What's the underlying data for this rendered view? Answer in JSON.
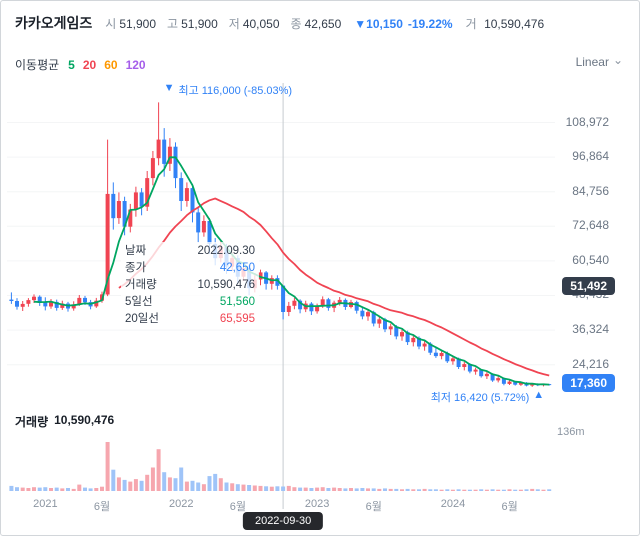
{
  "colors": {
    "up": "#f04452",
    "down": "#3182f6",
    "up_volume": "#f6a6ae",
    "down_volume": "#9fc4f8",
    "ma5": "#00a661",
    "ma20": "#f04452",
    "ma60": "#fe9800",
    "ma120": "#a55eea",
    "accent_blue": "#3182f6",
    "badge_dark": "#333d4b"
  },
  "header": {
    "title": "카카오게임즈",
    "fields": [
      {
        "label": "시",
        "value": "51,900"
      },
      {
        "label": "고",
        "value": "51,900"
      },
      {
        "label": "저",
        "value": "40,050"
      },
      {
        "label": "종",
        "value": "42,650"
      }
    ],
    "change": "▼10,150",
    "change_pct": "-19.22%",
    "volume_label": "거",
    "volume_value": "10,590,476"
  },
  "legend": {
    "label": "이동평균",
    "periods": [
      {
        "value": "5",
        "color": "#00a661"
      },
      {
        "value": "20",
        "color": "#f04452"
      },
      {
        "value": "60",
        "color": "#fe9800"
      },
      {
        "value": "120",
        "color": "#a55eea"
      }
    ]
  },
  "scale": {
    "label": "Linear"
  },
  "annotations": {
    "high_marker": "▼",
    "high_text": "최고 116,000 (-85.03%)",
    "low_text": "최저 16,420 (5.72%)",
    "low_marker": "▲"
  },
  "tooltip": {
    "rows": [
      {
        "label": "날짜",
        "value": "2022.09.30",
        "color": "#333d4b"
      },
      {
        "label": "종가",
        "value": "42,650",
        "color": "#3182f6"
      },
      {
        "label": "거래량",
        "value": "10,590,476",
        "color": "#333d4b"
      },
      {
        "label": "5일선",
        "value": "51,560",
        "color": "#00a661"
      },
      {
        "label": "20일선",
        "value": "65,595",
        "color": "#f04452"
      }
    ]
  },
  "y_axis": {
    "labels": [
      "108,972",
      "96,864",
      "84,756",
      "72,648",
      "60,540",
      "48,432",
      "36,324",
      "24,216"
    ],
    "values": [
      108972,
      96864,
      84756,
      72648,
      60540,
      48432,
      36324,
      24216
    ]
  },
  "badges": {
    "crosshair_label": "51,492",
    "crosshair_value": 51492,
    "last_label": "17,360",
    "last_value": 17360
  },
  "volume_pane": {
    "label": "거래량",
    "value": "10,590,476",
    "axis_label": "136m",
    "axis_value": 136
  },
  "x_axis": {
    "labels": [
      "2021",
      "6월",
      "2022",
      "6월",
      "2023",
      "6월",
      "2024",
      "6월"
    ],
    "month_offsets": [
      0,
      5,
      12,
      17,
      24,
      29,
      36,
      41
    ]
  },
  "date_pill": "2022-09-30",
  "chart_data": {
    "type": "candlestick",
    "title": "카카오게임즈",
    "scale": "Linear",
    "crosshair_index": 48,
    "crosshair_date": "2022-09-30",
    "crosshair_ohlc": {
      "open": 51900,
      "high": 51900,
      "low": 40050,
      "close": 42650,
      "volume": 10590476
    },
    "high_point": {
      "index": 26,
      "price": 116000,
      "change_from_high_pct": -85.03
    },
    "low_point": {
      "index": 92,
      "price": 16420,
      "change_from_low_pct": 5.72
    },
    "last_close": 17360,
    "price_range": [
      15000,
      120000
    ],
    "volume_axis_max_m": 136,
    "candles": [
      [
        47000,
        49500,
        45500,
        46500
      ],
      [
        46500,
        47500,
        43500,
        44500
      ],
      [
        44500,
        46500,
        43000,
        45500
      ],
      [
        45500,
        47500,
        44500,
        46800
      ],
      [
        46800,
        48800,
        45800,
        48000
      ],
      [
        48000,
        48500,
        44800,
        45800
      ],
      [
        46000,
        47800,
        43200,
        44600
      ],
      [
        44600,
        47200,
        43800,
        46200
      ],
      [
        46200,
        47000,
        43100,
        44100
      ],
      [
        44100,
        46600,
        43400,
        45600
      ],
      [
        45600,
        46200,
        42800,
        43900
      ],
      [
        43900,
        46400,
        43100,
        45300
      ],
      [
        45300,
        48600,
        44800,
        47600
      ],
      [
        47600,
        48300,
        45100,
        46100
      ],
      [
        46100,
        46900,
        43600,
        44600
      ],
      [
        44600,
        47600,
        44100,
        46600
      ],
      [
        46600,
        49800,
        45900,
        48800
      ],
      [
        48800,
        103000,
        48200,
        84000
      ],
      [
        84000,
        88000,
        71500,
        75500
      ],
      [
        75500,
        84500,
        73500,
        81500
      ],
      [
        81500,
        83000,
        69500,
        72500
      ],
      [
        72500,
        80500,
        70500,
        78500
      ],
      [
        78500,
        86500,
        76000,
        84500
      ],
      [
        84500,
        86000,
        76500,
        79500
      ],
      [
        79500,
        92000,
        78000,
        89500
      ],
      [
        89500,
        99000,
        87000,
        96500
      ],
      [
        96500,
        116000,
        94000,
        103000
      ],
      [
        103000,
        107000,
        90000,
        94500
      ],
      [
        94500,
        103500,
        92000,
        100500
      ],
      [
        100500,
        102000,
        86000,
        89500
      ],
      [
        89500,
        91500,
        78000,
        81500
      ],
      [
        81500,
        88000,
        79500,
        86000
      ],
      [
        86000,
        87500,
        74000,
        77500
      ],
      [
        77500,
        79000,
        67000,
        70500
      ],
      [
        70500,
        76500,
        69000,
        74500
      ],
      [
        74500,
        75500,
        63000,
        66500
      ],
      [
        66500,
        68500,
        59000,
        61500
      ],
      [
        61500,
        67500,
        60000,
        65500
      ],
      [
        65500,
        66500,
        56000,
        58500
      ],
      [
        58500,
        63500,
        57000,
        61500
      ],
      [
        61500,
        62500,
        52500,
        55000
      ],
      [
        55000,
        59500,
        53500,
        58000
      ],
      [
        58000,
        59000,
        48500,
        51000
      ],
      [
        51000,
        55500,
        49500,
        54000
      ],
      [
        54000,
        57500,
        52000,
        56500
      ],
      [
        56500,
        57000,
        50500,
        52500
      ],
      [
        52500,
        55500,
        50500,
        54500
      ],
      [
        54500,
        55500,
        50500,
        51800
      ],
      [
        51900,
        51900,
        40050,
        42650
      ],
      [
        42650,
        46200,
        41200,
        44800
      ],
      [
        44800,
        47600,
        43600,
        46600
      ],
      [
        46600,
        47100,
        42200,
        43600
      ],
      [
        43600,
        46600,
        42600,
        45600
      ],
      [
        45600,
        46100,
        41600,
        42900
      ],
      [
        42900,
        45600,
        42100,
        44900
      ],
      [
        44900,
        48100,
        44100,
        47100
      ],
      [
        47100,
        47600,
        43100,
        44100
      ],
      [
        44100,
        46600,
        42600,
        45900
      ],
      [
        45900,
        47900,
        44900,
        46900
      ],
      [
        46900,
        47400,
        43400,
        44400
      ],
      [
        44400,
        46900,
        43900,
        46100
      ],
      [
        46100,
        46600,
        42100,
        43100
      ],
      [
        43100,
        44600,
        40100,
        41100
      ],
      [
        41100,
        43600,
        39600,
        42600
      ],
      [
        42600,
        43100,
        37600,
        38600
      ],
      [
        38600,
        41100,
        37100,
        40100
      ],
      [
        40100,
        40600,
        35600,
        36600
      ],
      [
        36600,
        38600,
        34600,
        37600
      ],
      [
        37600,
        38100,
        33100,
        34100
      ],
      [
        34100,
        36600,
        32600,
        35600
      ],
      [
        35600,
        36100,
        31100,
        32100
      ],
      [
        32100,
        34600,
        30600,
        33600
      ],
      [
        33600,
        34100,
        29600,
        30600
      ],
      [
        30600,
        32600,
        29100,
        31600
      ],
      [
        31600,
        32100,
        27600,
        28400
      ],
      [
        28400,
        30100,
        26600,
        27200
      ],
      [
        27200,
        29100,
        26100,
        28300
      ],
      [
        28300,
        28800,
        24800,
        25400
      ],
      [
        25400,
        27200,
        24200,
        26400
      ],
      [
        26400,
        26700,
        22700,
        23400
      ],
      [
        23400,
        25200,
        22200,
        24400
      ],
      [
        24400,
        24700,
        21200,
        21800
      ],
      [
        21800,
        23200,
        20700,
        22500
      ],
      [
        22500,
        22700,
        19700,
        20200
      ],
      [
        20200,
        21700,
        19200,
        21000
      ],
      [
        21000,
        21200,
        18200,
        18700
      ],
      [
        18700,
        20200,
        18000,
        19500
      ],
      [
        19500,
        19700,
        17000,
        17500
      ],
      [
        17500,
        18700,
        17100,
        18300
      ],
      [
        18300,
        18500,
        16900,
        17200
      ],
      [
        17200,
        18300,
        16800,
        17900
      ],
      [
        17900,
        18100,
        16600,
        16900
      ],
      [
        16900,
        17800,
        16420,
        17500
      ],
      [
        17500,
        17700,
        16700,
        17000
      ],
      [
        17000,
        17600,
        16600,
        17400
      ],
      [
        17400,
        17500,
        16900,
        17360
      ]
    ],
    "volumes_m": [
      12,
      9,
      8,
      7,
      9,
      8,
      9,
      7,
      8,
      6,
      7,
      5,
      15,
      8,
      6,
      7,
      10,
      115,
      50,
      32,
      26,
      22,
      28,
      24,
      38,
      55,
      98,
      44,
      32,
      30,
      55,
      22,
      24,
      20,
      16,
      35,
      40,
      30,
      20,
      18,
      16,
      15,
      14,
      13,
      12,
      11,
      10,
      11,
      10.59,
      12,
      9,
      8,
      8,
      7,
      8,
      9,
      7,
      8,
      7,
      6,
      7,
      6,
      7,
      6,
      6,
      5,
      6,
      5,
      5,
      4,
      5,
      4,
      4,
      5,
      4,
      4,
      3,
      4,
      3,
      4,
      3,
      3,
      3,
      4,
      3,
      4,
      3,
      3,
      4,
      3,
      3,
      4,
      5,
      4,
      3,
      4
    ],
    "moving_averages": {
      "shown": [
        5,
        20
      ],
      "legend": [
        5,
        20,
        60,
        120
      ]
    }
  }
}
